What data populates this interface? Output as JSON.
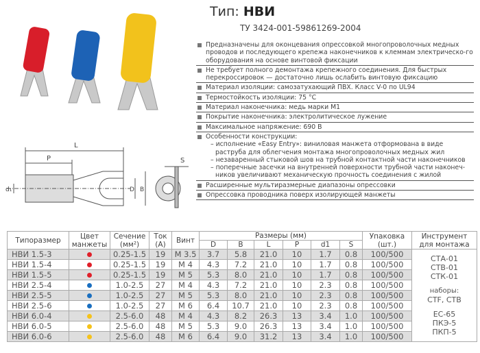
{
  "header": {
    "type_label": "Тип:",
    "type_value": "НВИ",
    "tu": "ТУ 3424-001-59861269-2004"
  },
  "features": [
    "Предназначены для оконцевания опрессовкой многопроволочных медных проводов и последующего крепежа наконечников к клеммам электрическо-го оборудования на основе винтовой фиксации",
    "Не требует полного демонтажа крепежного соединения. Для быстрых перекроссировок — достаточно лишь ослабить винтовую фиксацию",
    "Материал изоляции: самозатухающий ПВХ. Класс V-0 по UL94",
    "Термостойкость изоляции: 75 °C",
    "Материал наконечника: медь марки М1",
    "Покрытие наконечника: электролитическое лужение",
    "Максимальное напряжение: 690 В"
  ],
  "construction": {
    "title": "Особенности конструкции:",
    "items": [
      "– исполнение «Easy Entry»: виниловая манжета отформована в виде раструба для облегчения монтажа многопроволочных медных жил",
      "– незаваренный стыковой шов на трубной контактной части наконечников",
      "– поперечные засечки на внутренней поверхности трубной части наконеч-ников увеличивают механическую прочность соединения с жилой"
    ]
  },
  "features_tail": [
    "Расширенные мультиразмерные диапазоны опрессовки",
    "Опрессовка проводника поверх изолирующей манжеты"
  ],
  "drawing_labels": {
    "L": "L",
    "P": "P",
    "d1": "d₁",
    "D": "D",
    "B": "B",
    "S": "S"
  },
  "colors": {
    "red": "#e0202a",
    "blue": "#1a6fc0",
    "yellow": "#f5c21a"
  },
  "table": {
    "headers": {
      "type": "Типоразмер",
      "color": "Цвет манжеты",
      "section": "Сечение (мм²)",
      "current": "Ток (А)",
      "screw": "Винт",
      "dims": "Размеры (мм)",
      "D": "D",
      "B": "B",
      "L": "L",
      "P": "P",
      "d1": "d1",
      "S": "S",
      "pack": "Упаковка (шт.)",
      "tool": "Инструмент для монтажа"
    },
    "rows": [
      {
        "name": "НВИ 1.5-3",
        "color": "red",
        "section": "0.25-1.5",
        "current": "19",
        "screw": "M 3.5",
        "D": "3.7",
        "B": "5.8",
        "L": "21.0",
        "P": "10",
        "d1": "1.7",
        "S": "0.8",
        "pack": "100/500"
      },
      {
        "name": "НВИ 1.5-4",
        "color": "red",
        "section": "0.25-1.5",
        "current": "19",
        "screw": "M 4",
        "D": "4.3",
        "B": "7.2",
        "L": "21.0",
        "P": "10",
        "d1": "1.7",
        "S": "0.8",
        "pack": "100/500"
      },
      {
        "name": "НВИ 1.5-5",
        "color": "red",
        "section": "0.25-1.5",
        "current": "19",
        "screw": "M 5",
        "D": "5.3",
        "B": "8.0",
        "L": "21.0",
        "P": "10",
        "d1": "1.7",
        "S": "0.8",
        "pack": "100/500"
      },
      {
        "name": "НВИ 2.5-4",
        "color": "blue",
        "section": "1.0-2.5",
        "current": "27",
        "screw": "M 4",
        "D": "4.3",
        "B": "7.2",
        "L": "21.0",
        "P": "10",
        "d1": "2.3",
        "S": "0.8",
        "pack": "100/500"
      },
      {
        "name": "НВИ 2.5-5",
        "color": "blue",
        "section": "1.0-2.5",
        "current": "27",
        "screw": "M 5",
        "D": "5.3",
        "B": "8.0",
        "L": "21.0",
        "P": "10",
        "d1": "2.3",
        "S": "0.8",
        "pack": "100/500"
      },
      {
        "name": "НВИ 2.5-6",
        "color": "blue",
        "section": "1.0-2.5",
        "current": "27",
        "screw": "M 6",
        "D": "6.4",
        "B": "10.7",
        "L": "21.0",
        "P": "10",
        "d1": "2.3",
        "S": "0.8",
        "pack": "100/500"
      },
      {
        "name": "НВИ 6.0-4",
        "color": "yellow",
        "section": "2.5-6.0",
        "current": "48",
        "screw": "M 4",
        "D": "4.3",
        "B": "8.2",
        "L": "26.3",
        "P": "13",
        "d1": "3.4",
        "S": "1.0",
        "pack": "100/500"
      },
      {
        "name": "НВИ 6.0-5",
        "color": "yellow",
        "section": "2.5-6.0",
        "current": "48",
        "screw": "M 5",
        "D": "5.3",
        "B": "9.0",
        "L": "26.3",
        "P": "13",
        "d1": "3.4",
        "S": "1.0",
        "pack": "100/500"
      },
      {
        "name": "НВИ 6.0-6",
        "color": "yellow",
        "section": "2.5-6.0",
        "current": "48",
        "screw": "M 6",
        "D": "6.4",
        "B": "9.0",
        "L": "31.2",
        "P": "13",
        "d1": "3.4",
        "S": "1.0",
        "pack": "100/500"
      }
    ],
    "tools": [
      "СТА-01",
      "СТВ-01",
      "СТК-01",
      "наборы:",
      "CTF, СТВ",
      "ЕС-65",
      "ПКЭ-5",
      "ПКП-5"
    ]
  }
}
